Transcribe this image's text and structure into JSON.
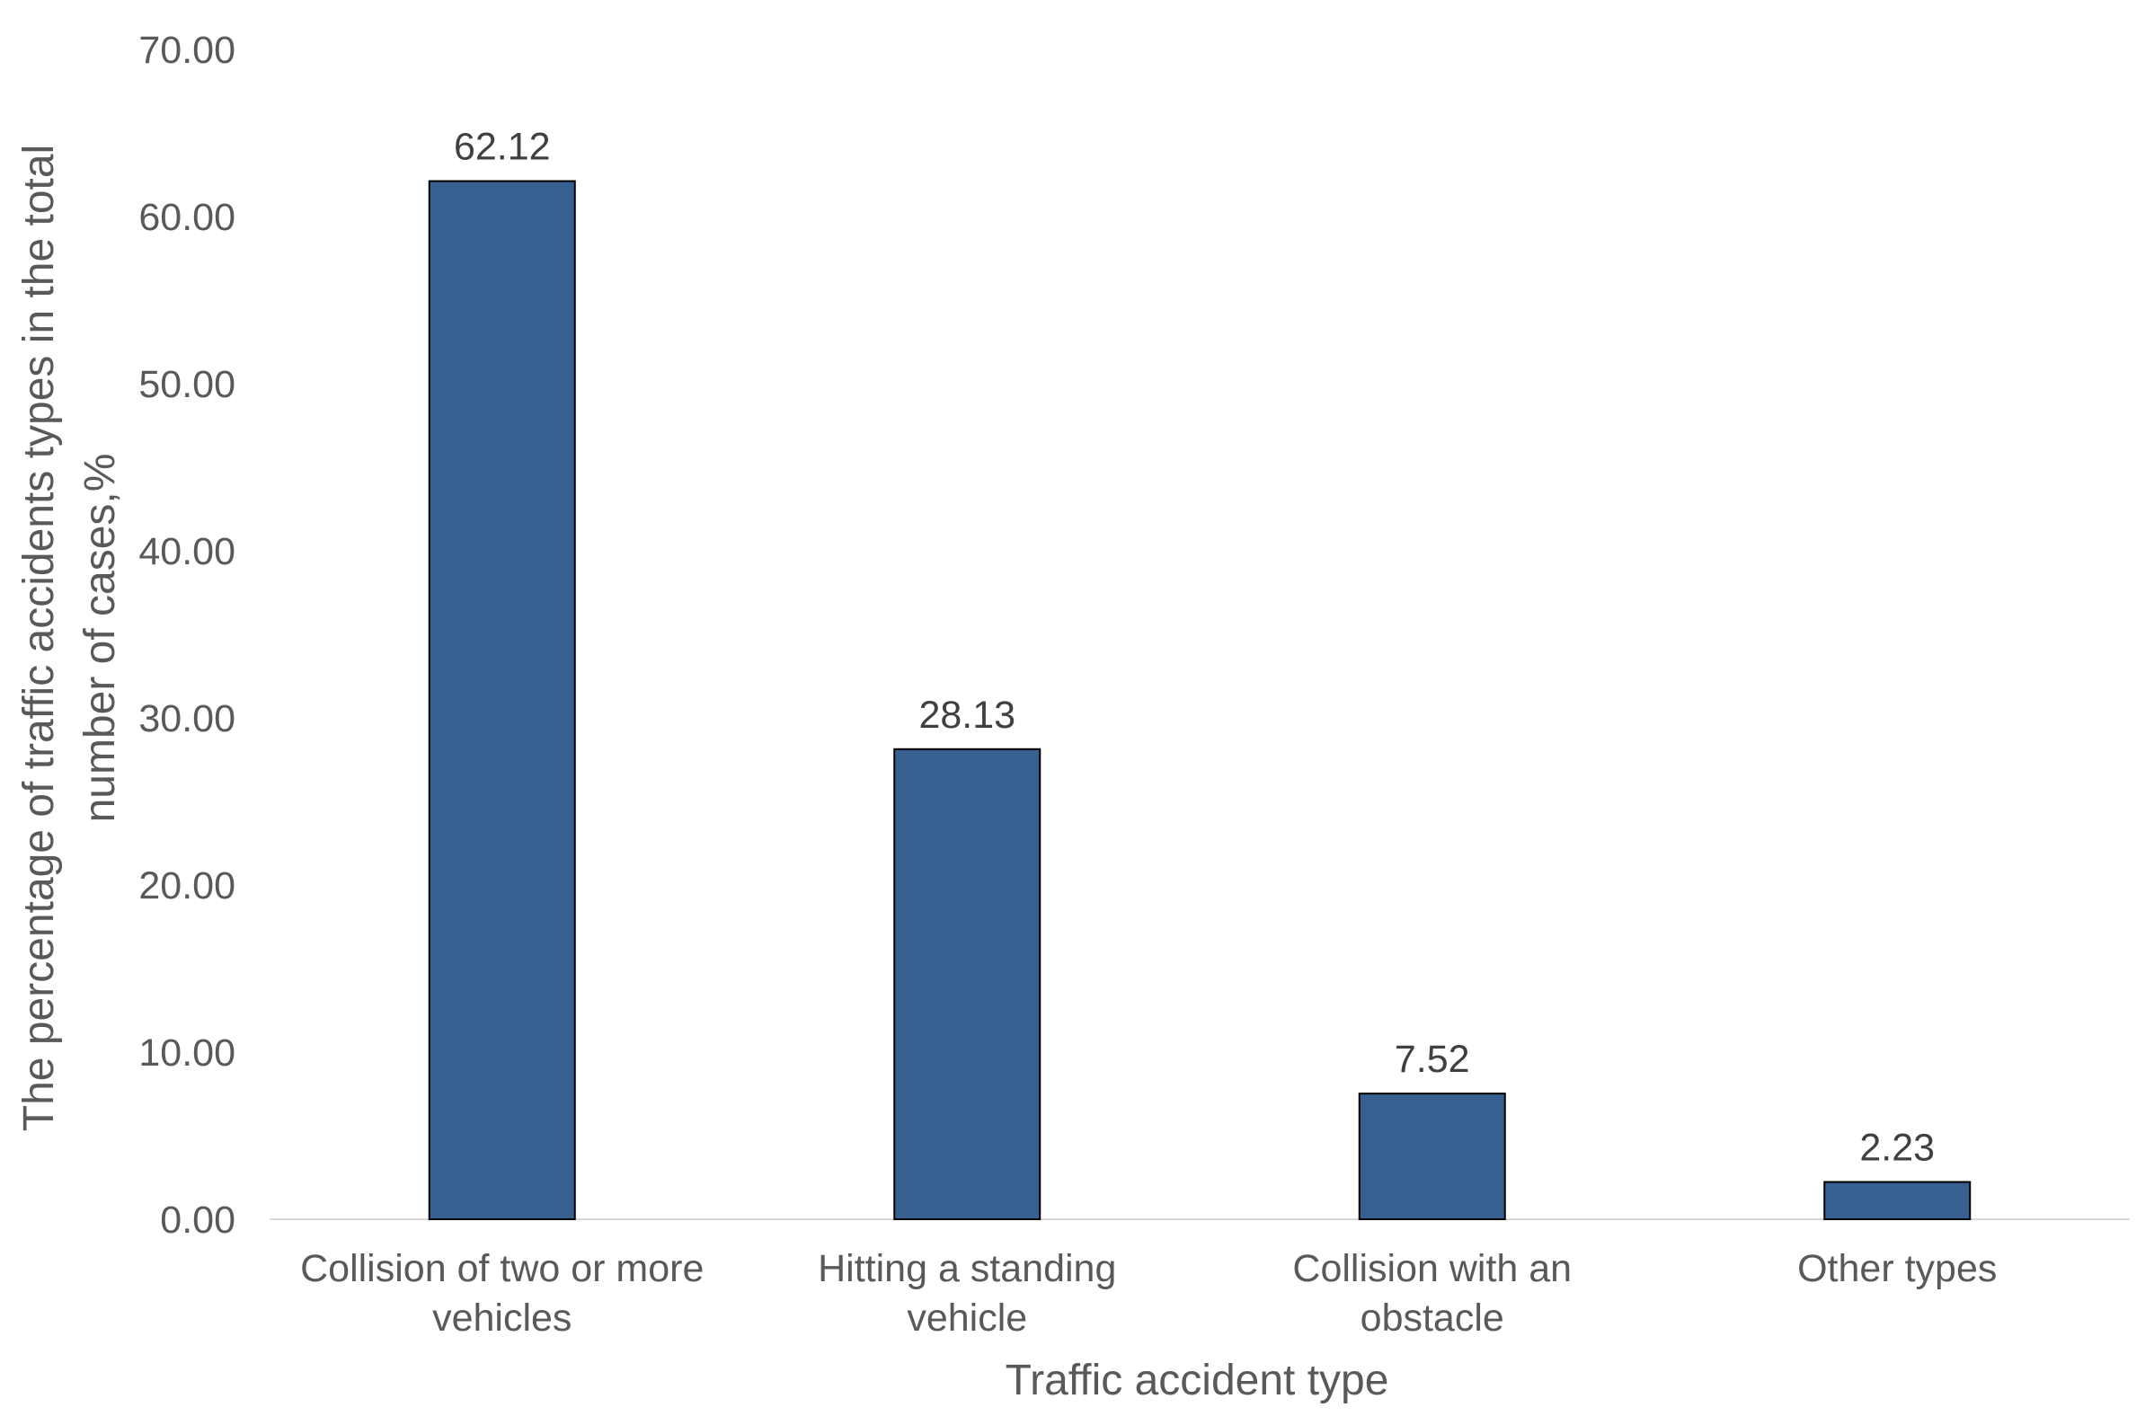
{
  "chart_data": {
    "type": "bar",
    "categories": [
      [
        "Collision of two or more",
        "vehicles"
      ],
      [
        "Hitting a standing",
        "vehicle"
      ],
      [
        "Collision with an",
        "obstacle"
      ],
      [
        "Other types"
      ]
    ],
    "values": [
      62.12,
      28.13,
      7.52,
      2.23
    ],
    "data_labels": [
      "62.12",
      "28.13",
      "7.52",
      "2.23"
    ],
    "xlabel": "Traffic accident type",
    "ylabel": [
      "The percentage of traffic accidents types in the total",
      "number of cases,%"
    ],
    "ylim": [
      0,
      70
    ],
    "yticks": [
      "0.00",
      "10.00",
      "20.00",
      "30.00",
      "40.00",
      "50.00",
      "60.00",
      "70.00"
    ],
    "grid": false,
    "bar_color": "#375F8F",
    "bar_edge_color": "#000000",
    "axis_color": "#D9D9D9"
  }
}
